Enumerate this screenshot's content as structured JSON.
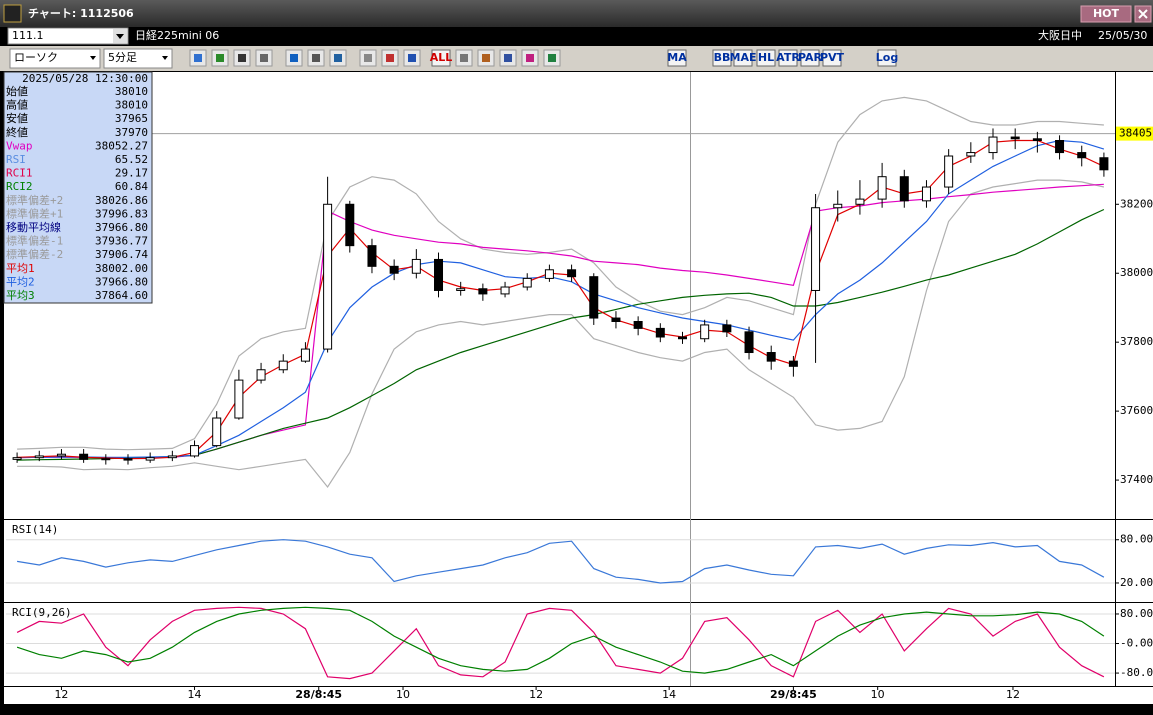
{
  "window": {
    "title": "チャート: 1112506",
    "hot": "HOT"
  },
  "toolbar": {
    "code": "111.1",
    "instrument": "日経225mini 06",
    "session": "大阪日中",
    "date": "25/05/30",
    "chart_style": "ローソク",
    "interval": "5分足",
    "buttons": [
      "ALL",
      "MA",
      "BB",
      "MAE",
      "HL",
      "ATR",
      "PAR",
      "PVT",
      "Log"
    ]
  },
  "info_panel": {
    "datetime": "2025/05/28 12:30:00",
    "rows": [
      {
        "label": "始値",
        "value": "38010",
        "color": "#000000"
      },
      {
        "label": "高値",
        "value": "38010",
        "color": "#000000"
      },
      {
        "label": "安値",
        "value": "37965",
        "color": "#000000"
      },
      {
        "label": "終値",
        "value": "37970",
        "color": "#000000"
      },
      {
        "label": "Vwap",
        "value": "38052.27",
        "color": "#e000c0"
      },
      {
        "label": "RSI",
        "value": "65.52",
        "color": "#5a8ee0"
      },
      {
        "label": "RCI1",
        "value": "29.17",
        "color": "#e0004a"
      },
      {
        "label": "RCI2",
        "value": "60.84",
        "color": "#008000"
      },
      {
        "label": "標準偏差+2",
        "value": "38026.86",
        "color": "#9a9a9a"
      },
      {
        "label": "標準偏差+1",
        "value": "37996.83",
        "color": "#9a9a9a"
      },
      {
        "label": "移動平均線",
        "value": "37966.80",
        "color": "#000080"
      },
      {
        "label": "標準偏差-1",
        "value": "37936.77",
        "color": "#9a9a9a"
      },
      {
        "label": "標準偏差-2",
        "value": "37906.74",
        "color": "#9a9a9a"
      },
      {
        "label": "平均1",
        "value": "38002.00",
        "color": "#e00000"
      },
      {
        "label": "平均2",
        "value": "37966.80",
        "color": "#2060e0"
      },
      {
        "label": "平均3",
        "value": "37864.60",
        "color": "#008000"
      }
    ]
  },
  "chart_data": [
    {
      "type": "candlestick",
      "up_color": "#ffffff",
      "down_color": "#000000",
      "open": [
        37460,
        37465,
        37470,
        37475,
        37460,
        37462,
        37458,
        37465,
        37470,
        37500,
        37580,
        37690,
        37720,
        37745,
        37780,
        38200,
        38080,
        38020,
        38000,
        38040,
        37950,
        37955,
        37940,
        37960,
        37985,
        38010,
        37990,
        37870,
        37860,
        37840,
        37815,
        37810,
        37850,
        37830,
        37770,
        37745,
        37950,
        38190,
        38200,
        38215,
        38280,
        38210,
        38250,
        38340,
        38350,
        38395,
        38390,
        38385,
        38350,
        38335
      ],
      "high": [
        37480,
        37485,
        37490,
        37490,
        37475,
        37475,
        37480,
        37485,
        37515,
        37600,
        37720,
        37740,
        37765,
        37800,
        38280,
        38210,
        38100,
        38040,
        38070,
        38060,
        37975,
        37970,
        37975,
        38000,
        38025,
        38025,
        38000,
        37890,
        37875,
        37855,
        37830,
        37865,
        37865,
        37845,
        37790,
        37760,
        38230,
        38240,
        38270,
        38320,
        38300,
        38270,
        38360,
        38380,
        38420,
        38420,
        38410,
        38400,
        38370,
        38350
      ],
      "low": [
        37450,
        37455,
        37460,
        37450,
        37445,
        37445,
        37450,
        37455,
        37465,
        37495,
        37575,
        37680,
        37710,
        37740,
        37770,
        38060,
        38000,
        37980,
        37985,
        37930,
        37935,
        37920,
        37930,
        37950,
        37975,
        37975,
        37850,
        37840,
        37820,
        37800,
        37795,
        37800,
        37815,
        37750,
        37720,
        37700,
        37740,
        38150,
        38170,
        38190,
        38190,
        38190,
        38230,
        38320,
        38330,
        38360,
        38350,
        38330,
        38310,
        38280
      ],
      "close": [
        37465,
        37470,
        37475,
        37460,
        37462,
        37458,
        37465,
        37470,
        37500,
        37580,
        37690,
        37720,
        37745,
        37780,
        38200,
        38080,
        38020,
        38000,
        38040,
        37950,
        37955,
        37940,
        37960,
        37985,
        38010,
        37990,
        37870,
        37860,
        37840,
        37815,
        37810,
        37850,
        37830,
        37770,
        37745,
        37730,
        38190,
        38200,
        38215,
        38280,
        38210,
        38250,
        38340,
        38350,
        38395,
        38390,
        38385,
        38350,
        38335,
        38300
      ],
      "series": [
        {
          "color": "#b0b0b0",
          "values": [
            37490,
            37492,
            37495,
            37495,
            37490,
            37488,
            37490,
            37492,
            37520,
            37620,
            37760,
            37810,
            37830,
            37840,
            38150,
            38250,
            38280,
            38270,
            38230,
            38150,
            38100,
            38070,
            38060,
            38055,
            38060,
            38070,
            38030,
            37960,
            37920,
            37890,
            37880,
            37900,
            37930,
            37920,
            37900,
            37880,
            38200,
            38380,
            38460,
            38500,
            38510,
            38500,
            38470,
            38440,
            38430,
            38430,
            38440,
            38440,
            38435,
            38430
          ]
        },
        {
          "color": "#b0b0b0",
          "values": [
            37440,
            37440,
            37438,
            37430,
            37432,
            37430,
            37436,
            37440,
            37450,
            37440,
            37430,
            37440,
            37450,
            37460,
            37380,
            37480,
            37650,
            37780,
            37830,
            37850,
            37860,
            37850,
            37860,
            37870,
            37880,
            37880,
            37810,
            37790,
            37770,
            37755,
            37745,
            37770,
            37780,
            37720,
            37680,
            37640,
            37560,
            37545,
            37550,
            37570,
            37700,
            37950,
            38150,
            38230,
            38250,
            38260,
            38270,
            38270,
            38265,
            38250
          ]
        },
        {
          "color": "#e000c0",
          "values": [
            37465,
            37466,
            37466,
            37466,
            37465,
            37465,
            37465,
            37466,
            37472,
            37490,
            37510,
            37530,
            37545,
            37560,
            38180,
            38150,
            38125,
            38110,
            38100,
            38090,
            38085,
            38075,
            38070,
            38065,
            38058,
            38050,
            38035,
            38030,
            38025,
            38015,
            38008,
            38003,
            37995,
            37985,
            37975,
            37965,
            38180,
            38190,
            38195,
            38205,
            38210,
            38215,
            38222,
            38228,
            38235,
            38240,
            38245,
            38250,
            38254,
            38258
          ]
        },
        {
          "color": "#006400",
          "values": [
            37458,
            37459,
            37460,
            37461,
            37462,
            37464,
            37466,
            37468,
            37472,
            37490,
            37510,
            37530,
            37550,
            37565,
            37580,
            37610,
            37645,
            37680,
            37720,
            37745,
            37770,
            37790,
            37810,
            37830,
            37850,
            37870,
            37880,
            37895,
            37910,
            37920,
            37930,
            37936,
            37940,
            37942,
            37930,
            37905,
            37905,
            37915,
            37930,
            37945,
            37962,
            37980,
            37995,
            38015,
            38035,
            38055,
            38085,
            38120,
            38155,
            38185
          ]
        },
        {
          "color": "#2060e0",
          "values": [
            37465,
            37466,
            37467,
            37467,
            37466,
            37466,
            37467,
            37468,
            37472,
            37500,
            37530,
            37570,
            37610,
            37655,
            37800,
            37900,
            37960,
            38000,
            38025,
            38035,
            38030,
            38010,
            37990,
            37985,
            37990,
            37975,
            37940,
            37920,
            37900,
            37885,
            37870,
            37860,
            37850,
            37835,
            37820,
            37806,
            37880,
            37940,
            37980,
            38030,
            38090,
            38150,
            38230,
            38270,
            38310,
            38340,
            38370,
            38385,
            38380,
            38360
          ]
        },
        {
          "color": "#e00000",
          "values": [
            37466,
            37468,
            37470,
            37466,
            37464,
            37462,
            37463,
            37466,
            37480,
            37540,
            37640,
            37700,
            37735,
            37765,
            38050,
            38130,
            38060,
            38010,
            38020,
            37980,
            37960,
            37950,
            37955,
            37975,
            38000,
            37995,
            37900,
            37865,
            37845,
            37825,
            37815,
            37835,
            37830,
            37790,
            37755,
            37735,
            38000,
            38170,
            38200,
            38250,
            38230,
            38240,
            38310,
            38340,
            38380,
            38385,
            38385,
            38360,
            38340,
            38310
          ]
        }
      ],
      "ylim": [
        37290,
        38575
      ],
      "yticks": [
        37400,
        37600,
        37800,
        38000,
        38200
      ],
      "grid": false,
      "last_price": 38405,
      "last_price_color": "#ffff00"
    },
    {
      "type": "line",
      "title": "RSI(14)",
      "series": [
        {
          "color": "#3a78d8",
          "values": [
            50,
            45,
            55,
            50,
            42,
            48,
            52,
            50,
            58,
            66,
            72,
            78,
            80,
            78,
            70,
            60,
            55,
            22,
            30,
            35,
            40,
            45,
            55,
            62,
            75,
            78,
            40,
            28,
            25,
            20,
            22,
            40,
            45,
            38,
            32,
            30,
            70,
            72,
            68,
            74,
            60,
            68,
            73,
            72,
            76,
            70,
            72,
            50,
            45,
            28
          ]
        }
      ],
      "ylim": [
        -5,
        106
      ],
      "yticks": [
        {
          "value": 80,
          "label": "80.00"
        },
        {
          "value": 20,
          "label": "20.00"
        }
      ],
      "grid": true
    },
    {
      "type": "line",
      "title": "RCI(9,26)",
      "series": [
        {
          "color": "#e0006a",
          "values": [
            30,
            60,
            55,
            80,
            -10,
            -60,
            10,
            60,
            90,
            95,
            98,
            95,
            80,
            40,
            -90,
            -95,
            -80,
            -20,
            40,
            -60,
            -85,
            -90,
            -50,
            80,
            95,
            90,
            30,
            -60,
            -70,
            -80,
            -40,
            60,
            70,
            10,
            -60,
            -90,
            60,
            90,
            30,
            80,
            -20,
            40,
            95,
            80,
            20,
            60,
            80,
            -10,
            -60,
            -90
          ]
        },
        {
          "color": "#008000",
          "values": [
            -10,
            -30,
            -40,
            -20,
            -30,
            -50,
            -40,
            -10,
            30,
            60,
            80,
            90,
            95,
            98,
            95,
            90,
            60,
            20,
            -10,
            -40,
            -60,
            -70,
            -75,
            -70,
            -40,
            0,
            20,
            -10,
            -30,
            -50,
            -75,
            -80,
            -70,
            -50,
            -30,
            -60,
            -20,
            20,
            50,
            70,
            80,
            85,
            80,
            75,
            75,
            78,
            85,
            80,
            60,
            20
          ]
        }
      ],
      "ylim": [
        -115,
        107
      ],
      "yticks": [
        {
          "value": 80,
          "label": "80.00"
        },
        {
          "value": 0,
          "label": "-0.00"
        },
        {
          "value": -80,
          "label": "-80.00"
        }
      ],
      "grid": true,
      "xlim": [
        0,
        50
      ],
      "xticks": [
        {
          "value": 2.5,
          "label": "12"
        },
        {
          "value": 8.5,
          "label": "14"
        },
        {
          "value": 14.1,
          "label": "28/8:45"
        },
        {
          "value": 17.9,
          "label": "10"
        },
        {
          "value": 23.9,
          "label": "12"
        },
        {
          "value": 29.9,
          "label": "14"
        },
        {
          "value": 35.5,
          "label": "29/8:45"
        },
        {
          "value": 39.3,
          "label": "10"
        },
        {
          "value": 45.4,
          "label": "12"
        }
      ]
    }
  ]
}
